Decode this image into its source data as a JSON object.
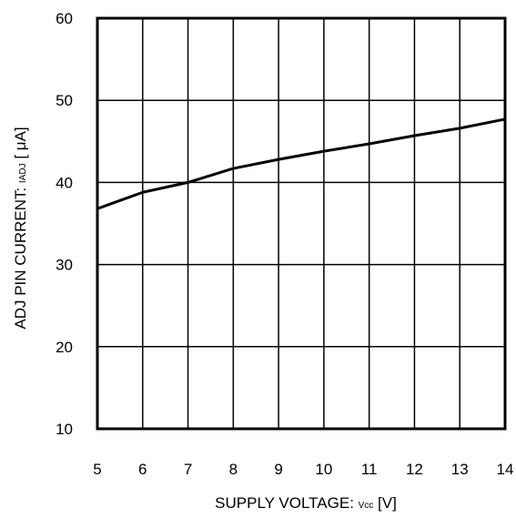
{
  "chart_data": {
    "type": "line",
    "title": "",
    "xlabel": "SUPPLY VOLTAGE: Vcc [V]",
    "xlabel_parts": {
      "main": "SUPPLY VOLTAGE: ",
      "sub": "Vcc",
      "unit": " [V]"
    },
    "ylabel": "ADJ PIN CURRENT: IADJ [μA]",
    "ylabel_parts": {
      "main": "ADJ PIN CURRENT: ",
      "sub": "IADJ",
      "unit": " [ μA]"
    },
    "xlim": [
      5,
      14
    ],
    "ylim": [
      10,
      60
    ],
    "x_ticks": [
      5,
      6,
      7,
      8,
      9,
      10,
      11,
      12,
      13,
      14
    ],
    "y_ticks": [
      10,
      20,
      30,
      40,
      50,
      60
    ],
    "grid": true,
    "series": [
      {
        "x": [
          5,
          6,
          7,
          8,
          9,
          10,
          11,
          12,
          13,
          14
        ],
        "y": [
          36.8,
          38.8,
          40.0,
          41.7,
          42.8,
          43.8,
          44.7,
          45.7,
          46.6,
          47.7
        ]
      }
    ],
    "colors": {
      "line": "#000000",
      "grid": "#000000",
      "background": "#ffffff"
    }
  }
}
